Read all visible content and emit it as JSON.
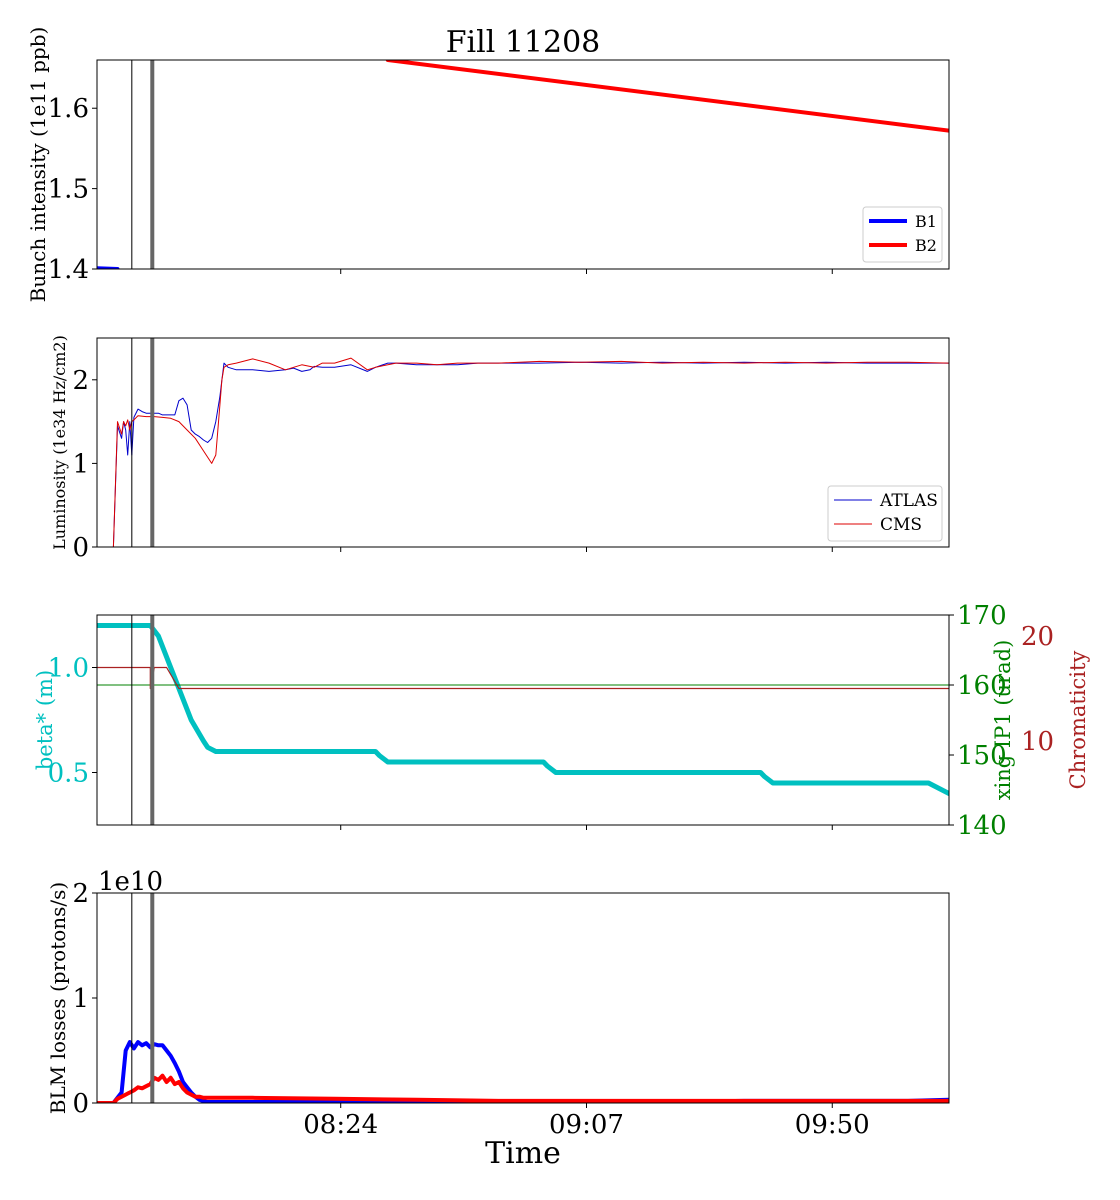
{
  "chart_data": [
    {
      "type": "line",
      "title": "Fill 11208",
      "ylabel": "Bunch intensity (1e11 ppb)",
      "ylim": [
        1.4,
        1.66
      ],
      "xlim_minutes": [
        -98,
        110
      ],
      "yticks": [
        {
          "value": 1.4,
          "label": "1.4"
        },
        {
          "value": 1.5,
          "label": "1.5"
        },
        {
          "value": 1.6,
          "label": "1.6"
        }
      ],
      "legend_position": "bottom-right",
      "series": [
        {
          "name": "B1",
          "color": "#0000ff",
          "x": [
            -98,
            -93
          ],
          "y": [
            1.401,
            1.4
          ]
        },
        {
          "name": "B2",
          "color": "#ff0000",
          "x": [
            -27,
            110
          ],
          "y": [
            1.66,
            1.572
          ]
        }
      ]
    },
    {
      "type": "line",
      "ylabel": "Luminosity (1e34 Hz/cm2)",
      "ylim": [
        0,
        2.5
      ],
      "xlim_minutes": [
        -98,
        110
      ],
      "yticks": [
        {
          "value": 0,
          "label": "0"
        },
        {
          "value": 1,
          "label": "1"
        },
        {
          "value": 2,
          "label": "2"
        }
      ],
      "legend_position": "bottom-right",
      "series": [
        {
          "name": "ATLAS",
          "color": "#0000cc",
          "x": [
            -98,
            -94,
            -93,
            -92,
            -91.5,
            -91,
            -90.5,
            -90,
            -89.5,
            -89,
            -88,
            -87,
            -86,
            -84,
            -83,
            -82,
            -80,
            -79,
            -78,
            -77,
            -76,
            -75,
            -74,
            -73,
            -72,
            -71,
            -70,
            -69,
            -68,
            -67.5,
            -67,
            -66,
            -64,
            -60,
            -56,
            -52,
            -50,
            -48,
            -46,
            -45,
            -43,
            -40,
            -36,
            -32,
            -30,
            -27,
            -25,
            -20,
            -15,
            -10,
            -5,
            0,
            10,
            20,
            30,
            40,
            50,
            60,
            70,
            80,
            90,
            100,
            110
          ],
          "y": [
            0,
            0,
            1.45,
            1.3,
            1.5,
            1.4,
            1.1,
            1.5,
            1.1,
            1.55,
            1.65,
            1.62,
            1.6,
            1.6,
            1.6,
            1.58,
            1.58,
            1.58,
            1.75,
            1.78,
            1.7,
            1.4,
            1.35,
            1.32,
            1.28,
            1.25,
            1.3,
            1.5,
            1.8,
            2.0,
            2.2,
            2.15,
            2.12,
            2.12,
            2.1,
            2.12,
            2.14,
            2.1,
            2.12,
            2.16,
            2.15,
            2.15,
            2.18,
            2.1,
            2.15,
            2.2,
            2.2,
            2.18,
            2.18,
            2.18,
            2.2,
            2.2,
            2.2,
            2.21,
            2.2,
            2.21,
            2.2,
            2.21,
            2.2,
            2.21,
            2.2,
            2.2,
            2.2
          ]
        },
        {
          "name": "CMS",
          "color": "#dd0000",
          "x": [
            -98,
            -94,
            -93,
            -92,
            -91.5,
            -91,
            -90.5,
            -90,
            -89.5,
            -89,
            -88,
            -86,
            -84,
            -82,
            -80,
            -78,
            -76,
            -74,
            -72,
            -70,
            -69,
            -68,
            -67.5,
            -67,
            -66,
            -64,
            -60,
            -56,
            -52,
            -50,
            -48,
            -45,
            -43,
            -40,
            -36,
            -32,
            -30,
            -25,
            -20,
            -15,
            -10,
            -5,
            0,
            10,
            20,
            30,
            40,
            50,
            60,
            70,
            80,
            90,
            100,
            110
          ],
          "y": [
            0,
            0,
            1.5,
            1.35,
            1.5,
            1.45,
            1.52,
            1.4,
            1.5,
            1.52,
            1.57,
            1.56,
            1.56,
            1.55,
            1.54,
            1.5,
            1.4,
            1.3,
            1.15,
            1.0,
            1.1,
            1.7,
            2.0,
            2.15,
            2.18,
            2.2,
            2.25,
            2.2,
            2.12,
            2.15,
            2.18,
            2.15,
            2.2,
            2.2,
            2.26,
            2.12,
            2.15,
            2.2,
            2.2,
            2.18,
            2.2,
            2.2,
            2.2,
            2.22,
            2.21,
            2.22,
            2.2,
            2.21,
            2.2,
            2.21,
            2.2,
            2.21,
            2.21,
            2.2
          ]
        }
      ]
    },
    {
      "type": "line",
      "ylabel": "beta* (m)",
      "ylabel_right": "xing IP1 (urad)",
      "ylabel_right2": "Chromaticity",
      "ylim": [
        0.25,
        1.25
      ],
      "ylim_right": [
        140,
        170
      ],
      "ylim_right2": [
        2,
        22
      ],
      "xlim_minutes": [
        -98,
        110
      ],
      "yticks": [
        {
          "value": 0.5,
          "label": "0.5"
        },
        {
          "value": 1.0,
          "label": "1.0"
        }
      ],
      "yticks_right": [
        {
          "value": 140,
          "label": "140"
        },
        {
          "value": 150,
          "label": "150"
        },
        {
          "value": 160,
          "label": "160"
        },
        {
          "value": 170,
          "label": "170"
        }
      ],
      "yticks_right2": [
        {
          "value": 10,
          "label": "10"
        },
        {
          "value": 20,
          "label": "20"
        }
      ],
      "series": [
        {
          "name": "beta*",
          "axis": "left",
          "color": "#00c0c0",
          "x": [
            -98,
            -85,
            -83,
            -80,
            -77,
            -75,
            -72,
            -71,
            -69,
            -68,
            -30,
            -29,
            -27,
            11,
            12,
            14,
            64,
            65,
            67,
            105,
            110
          ],
          "y": [
            1.2,
            1.2,
            1.15,
            1.0,
            0.85,
            0.75,
            0.65,
            0.62,
            0.6,
            0.6,
            0.6,
            0.58,
            0.55,
            0.55,
            0.53,
            0.5,
            0.5,
            0.48,
            0.45,
            0.45,
            0.4
          ]
        },
        {
          "name": "xing IP1",
          "axis": "right",
          "color": "#008000",
          "x": [
            -98,
            110
          ],
          "y": [
            160,
            160
          ]
        },
        {
          "name": "Chromaticity",
          "axis": "right2",
          "color": "#aa2222",
          "x": [
            -98,
            -85,
            -85,
            -84,
            -81,
            -78,
            -77,
            110
          ],
          "y": [
            17,
            17,
            15,
            17,
            17,
            15,
            15,
            15
          ]
        }
      ]
    },
    {
      "type": "line",
      "ylabel": "BLM losses (protons/s)",
      "xlabel": "Time",
      "ylim": [
        0,
        2
      ],
      "y_scale_label": "1e10",
      "xlim_minutes": [
        -98,
        110
      ],
      "xticks": [
        {
          "value": -38.5,
          "label": "08:24"
        },
        {
          "value": 21.5,
          "label": "09:07"
        },
        {
          "value": 81.5,
          "label": "09:50"
        }
      ],
      "yticks": [
        {
          "value": 0,
          "label": "0"
        },
        {
          "value": 1,
          "label": "1"
        },
        {
          "value": 2,
          "label": "2"
        }
      ],
      "series": [
        {
          "name": "B1",
          "color": "#0000ff",
          "x": [
            -98,
            -94,
            -92,
            -91,
            -90,
            -89,
            -88,
            -87,
            -86,
            -85,
            -84,
            -83,
            -82,
            -81,
            -80,
            -79,
            -78,
            -77,
            -76,
            -75,
            -74,
            -73,
            -72,
            -71,
            -70,
            -68,
            -60,
            -40,
            -20,
            0,
            20,
            40,
            60,
            80,
            100,
            110
          ],
          "y": [
            0,
            0,
            0.1,
            0.5,
            0.58,
            0.52,
            0.58,
            0.55,
            0.57,
            0.53,
            0.56,
            0.55,
            0.55,
            0.5,
            0.45,
            0.38,
            0.3,
            0.2,
            0.15,
            0.1,
            0.06,
            0.03,
            0.02,
            0.01,
            0.01,
            0.01,
            0.01,
            0.01,
            0.01,
            0.01,
            0.01,
            0.01,
            0.02,
            0.02,
            0.02,
            0.03
          ]
        },
        {
          "name": "B2",
          "color": "#ff0000",
          "x": [
            -98,
            -94,
            -93,
            -91,
            -90,
            -89,
            -88,
            -87,
            -86,
            -85,
            -84,
            -83,
            -82,
            -81,
            -80,
            -79,
            -78,
            -77,
            -76,
            -75,
            -74,
            -73,
            -72,
            -71,
            -70,
            -68,
            -60,
            -40,
            -20,
            0,
            20,
            40,
            60,
            80,
            100,
            110
          ],
          "y": [
            0,
            0,
            0.04,
            0.08,
            0.1,
            0.12,
            0.15,
            0.14,
            0.16,
            0.18,
            0.24,
            0.22,
            0.26,
            0.2,
            0.24,
            0.18,
            0.2,
            0.14,
            0.1,
            0.08,
            0.06,
            0.06,
            0.05,
            0.05,
            0.05,
            0.05,
            0.05,
            0.04,
            0.03,
            0.02,
            0.02,
            0.02,
            0.02,
            0.02,
            0.02,
            0.02
          ]
        }
      ]
    }
  ],
  "markers": [
    {
      "x_minutes": -89.5,
      "color": "#000000"
    },
    {
      "x_minutes": -84.5,
      "color": "#666666"
    }
  ]
}
